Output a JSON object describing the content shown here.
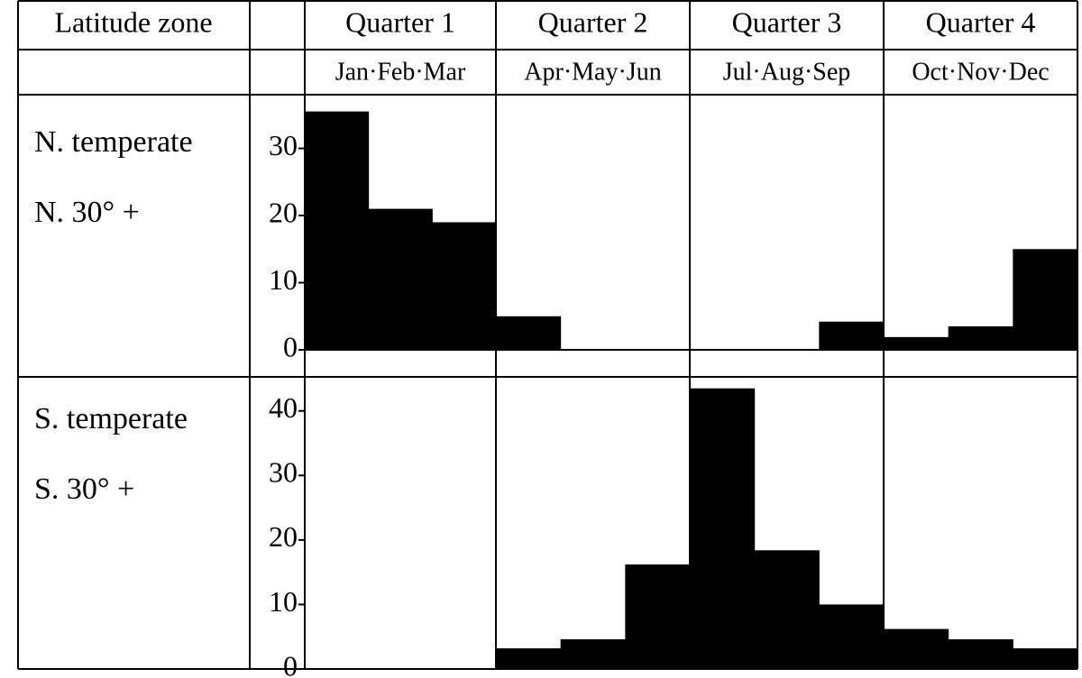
{
  "header": {
    "zone_label": "Latitude zone"
  },
  "quarters": [
    {
      "name": "Quarter 1",
      "months": "Jan·Feb·Mar"
    },
    {
      "name": "Quarter 2",
      "months": "Apr·May·Jun"
    },
    {
      "name": "Quarter 3",
      "months": "Jul·Aug·Sep"
    },
    {
      "name": "Quarter 4",
      "months": "Oct·Nov·Dec"
    }
  ],
  "chart_data": [
    {
      "type": "bar",
      "title": "N. temperate",
      "subtitle": "N. 30° +",
      "color": "#000000",
      "values": [
        35.5,
        21,
        19,
        5,
        0,
        0,
        0,
        0,
        4.2,
        1.9,
        3.5,
        15
      ],
      "ylim": [
        0,
        38
      ],
      "yticks": [
        0,
        10,
        20,
        30
      ]
    },
    {
      "type": "bar",
      "title": "S. temperate",
      "subtitle": "S. 30° +",
      "color": "#000000",
      "values": [
        0,
        0,
        0,
        3.2,
        4.6,
        16.2,
        43.5,
        18.4,
        10,
        6.2,
        4.6,
        3.2
      ],
      "ylim": [
        0,
        45
      ],
      "yticks": [
        0,
        10,
        20,
        30,
        40
      ]
    }
  ]
}
